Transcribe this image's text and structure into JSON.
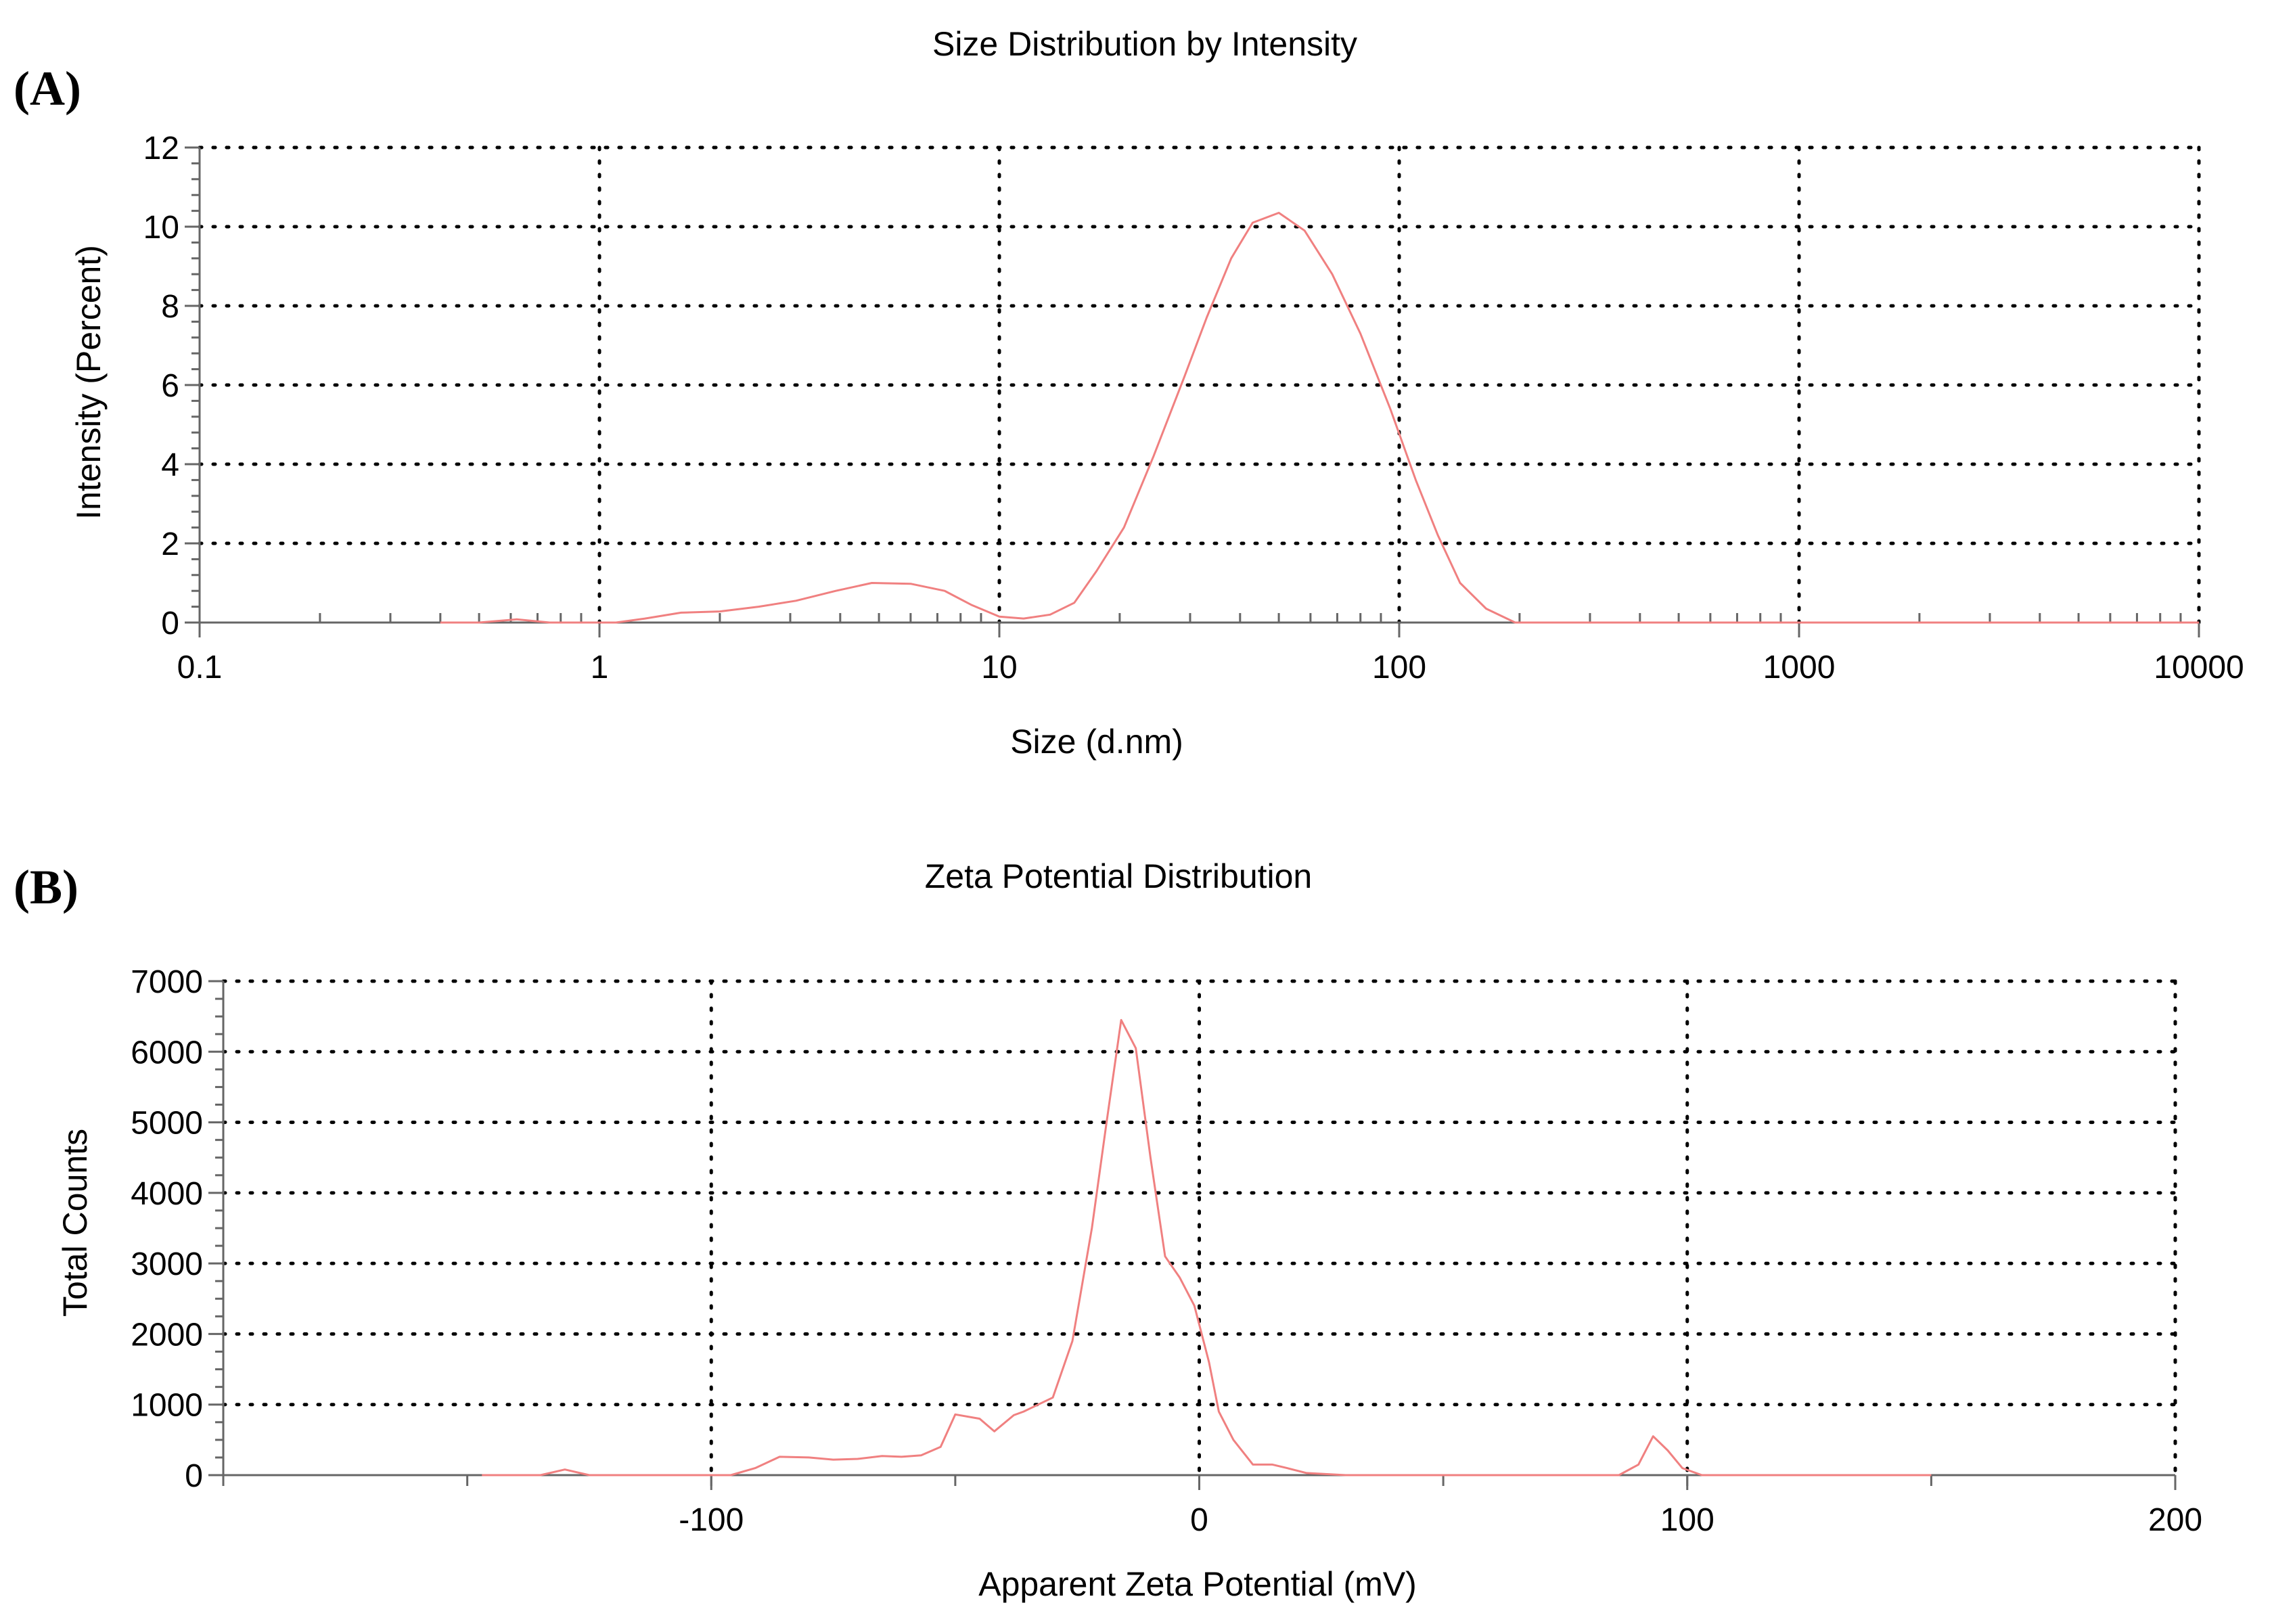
{
  "chart_data": [
    {
      "panel": "(A)",
      "type": "line",
      "title": "Size Distribution by Intensity",
      "xlabel": "Size (d.nm)",
      "ylabel": "Intensity (Percent)",
      "x_scale": "log",
      "xlim": [
        0.1,
        10000
      ],
      "ylim": [
        0,
        12
      ],
      "x_ticks": [
        0.1,
        1,
        10,
        100,
        1000,
        10000
      ],
      "x_tick_labels": [
        "0.1",
        "1",
        "10",
        "100",
        "1000",
        "10000"
      ],
      "y_ticks": [
        0,
        2,
        4,
        6,
        8,
        10,
        12
      ],
      "y_tick_labels": [
        "0",
        "2",
        "4",
        "6",
        "8",
        "10",
        "12"
      ],
      "grid": true,
      "series_color": "#f08080",
      "series": [
        {
          "x": [
            0.4,
            0.5,
            0.62,
            0.75,
            0.9,
            1.1,
            1.3,
            1.6,
            2.0,
            2.5,
            3.1,
            3.9,
            4.8,
            6.0,
            7.3,
            8.5,
            10.0,
            11.5,
            13.4,
            15.4,
            17.5,
            20.5,
            24.3,
            29.0,
            33.0,
            38.0,
            43.0,
            50.0,
            58.0,
            68.0,
            80.0,
            95.0,
            110.0,
            125.0,
            142.0,
            165.0,
            195.0,
            300.0,
            1000.0,
            3000.0,
            10000.0
          ],
          "y": [
            0,
            0,
            0.08,
            0,
            0,
            0,
            0.1,
            0.25,
            0.28,
            0.4,
            0.55,
            0.8,
            1.0,
            0.98,
            0.8,
            0.45,
            0.15,
            0.1,
            0.2,
            0.5,
            1.3,
            2.4,
            4.2,
            6.2,
            7.7,
            9.2,
            10.1,
            10.35,
            9.9,
            8.8,
            7.3,
            5.4,
            3.6,
            2.2,
            1.0,
            0.35,
            0.0,
            0,
            0,
            0,
            0
          ]
        }
      ]
    },
    {
      "panel": "(B)",
      "type": "line",
      "title": "Zeta Potential Distribution",
      "xlabel": "Apparent Zeta Potential (mV)",
      "ylabel": "Total Counts",
      "x_scale": "linear",
      "xlim": [
        -200,
        200
      ],
      "ylim": [
        0,
        7000
      ],
      "x_ticks": [
        -100,
        0,
        100,
        200
      ],
      "x_tick_labels": [
        "-100",
        "0",
        "100",
        "200"
      ],
      "y_ticks": [
        0,
        1000,
        2000,
        3000,
        4000,
        5000,
        6000,
        7000
      ],
      "y_tick_labels": [
        "0",
        "1000",
        "2000",
        "3000",
        "4000",
        "5000",
        "6000",
        "7000"
      ],
      "grid": true,
      "series_color": "#f08080",
      "series": [
        {
          "x": [
            -147,
            -135,
            -130,
            -125,
            -100,
            -96,
            -91,
            -86,
            -80,
            -75,
            -70,
            -65,
            -61,
            -57,
            -53,
            -50,
            -45,
            -42,
            -38,
            -36,
            -33,
            -30,
            -26,
            -22,
            -19,
            -16,
            -13,
            -10,
            -7,
            -4,
            -1,
            2,
            4,
            7,
            11,
            15,
            18,
            22,
            30,
            50,
            80,
            86,
            90,
            93,
            96,
            99,
            103,
            120,
            150
          ],
          "y": [
            0,
            0,
            80,
            0,
            0,
            0,
            100,
            260,
            250,
            220,
            230,
            270,
            260,
            280,
            400,
            860,
            800,
            620,
            850,
            900,
            1000,
            1100,
            1900,
            3500,
            5000,
            6450,
            6050,
            4500,
            3100,
            2800,
            2400,
            1600,
            900,
            500,
            150,
            150,
            100,
            30,
            0,
            0,
            0,
            0,
            150,
            550,
            350,
            100,
            0,
            0,
            0
          ]
        }
      ]
    }
  ]
}
